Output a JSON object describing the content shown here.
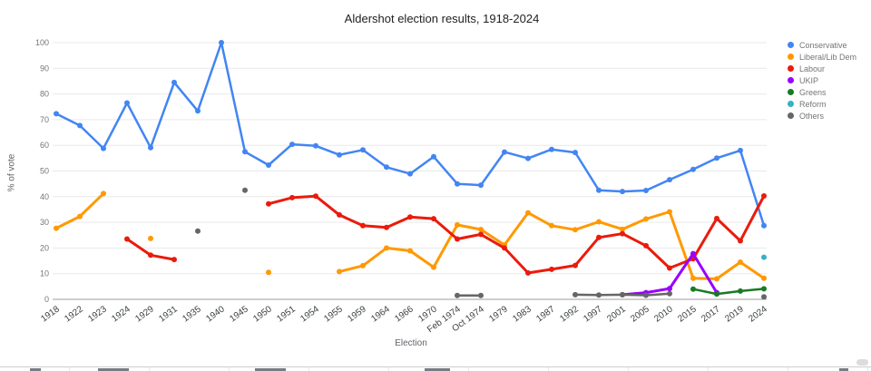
{
  "chart_data": {
    "type": "line",
    "title": "Aldershot election results, 1918-2024",
    "xlabel": "Election",
    "ylabel": "% of vote",
    "ylim": [
      0,
      100
    ],
    "y_tick_step": 10,
    "grid": true,
    "legend_position": "right",
    "categories": [
      "1918",
      "1922",
      "1923",
      "1924",
      "1929",
      "1931",
      "1935",
      "1940",
      "1945",
      "1950",
      "1951",
      "1954",
      "1955",
      "1959",
      "1964",
      "1966",
      "1970",
      "Feb 1974",
      "Oct 1974",
      "1979",
      "1983",
      "1987",
      "1992",
      "1997",
      "2001",
      "2005",
      "2010",
      "2015",
      "2017",
      "2019",
      "2024"
    ],
    "series": [
      {
        "name": "Conservative",
        "color": "#4285F4",
        "width": 2.5,
        "values": [
          72.3,
          67.7,
          58.8,
          76.5,
          59.1,
          84.5,
          73.4,
          100,
          57.5,
          52.3,
          60.4,
          59.8,
          56.3,
          58.2,
          51.5,
          48.9,
          55.6,
          45.0,
          44.5,
          57.4,
          54.9,
          58.4,
          57.2,
          42.5,
          42.0,
          42.4,
          46.6,
          50.6,
          55.0,
          58.0,
          28.7
        ]
      },
      {
        "name": "Liberal/Lib Dem",
        "color": "#FF9900",
        "width": 3,
        "values": [
          27.7,
          32.3,
          41.2,
          null,
          23.7,
          null,
          null,
          null,
          null,
          10.5,
          null,
          null,
          10.8,
          13.1,
          20.0,
          18.9,
          12.5,
          29.0,
          27.2,
          21.2,
          33.7,
          28.7,
          27.1,
          30.2,
          27.3,
          31.3,
          34.1,
          8.2,
          8.0,
          14.5,
          8.2
        ]
      },
      {
        "name": "Labour",
        "color": "#EA1B0C",
        "width": 3,
        "values": [
          null,
          null,
          null,
          23.5,
          17.2,
          15.5,
          null,
          null,
          null,
          37.2,
          39.6,
          40.2,
          32.9,
          28.7,
          28.0,
          32.1,
          31.4,
          23.5,
          25.3,
          20.0,
          10.3,
          11.7,
          13.2,
          24.1,
          25.6,
          20.9,
          12.2,
          15.8,
          31.5,
          22.8,
          40.3
        ]
      },
      {
        "name": "UKIP",
        "color": "#9900FF",
        "width": 3,
        "values": [
          null,
          null,
          null,
          null,
          null,
          null,
          null,
          null,
          null,
          null,
          null,
          null,
          null,
          null,
          null,
          null,
          null,
          null,
          null,
          null,
          null,
          null,
          null,
          null,
          1.8,
          2.6,
          4.2,
          17.8,
          2.6,
          null,
          null
        ]
      },
      {
        "name": "Greens",
        "color": "#1A7A23",
        "width": 2.5,
        "values": [
          null,
          null,
          null,
          null,
          null,
          null,
          null,
          null,
          null,
          null,
          null,
          null,
          null,
          null,
          null,
          null,
          null,
          null,
          null,
          null,
          null,
          null,
          null,
          null,
          null,
          null,
          null,
          4.0,
          2.1,
          3.2,
          4.1
        ]
      },
      {
        "name": "Reform",
        "color": "#35B2C4",
        "width": 2.5,
        "values": [
          null,
          null,
          null,
          null,
          null,
          null,
          null,
          null,
          null,
          null,
          null,
          null,
          null,
          null,
          null,
          null,
          null,
          null,
          null,
          null,
          null,
          null,
          null,
          null,
          null,
          null,
          null,
          null,
          null,
          null,
          16.4
        ]
      },
      {
        "name": "Others",
        "color": "#666666",
        "width": 2.5,
        "values": [
          null,
          null,
          null,
          null,
          null,
          null,
          26.6,
          null,
          42.5,
          null,
          null,
          null,
          null,
          null,
          null,
          null,
          null,
          1.5,
          1.5,
          null,
          null,
          null,
          1.8,
          1.7,
          1.8,
          1.6,
          2.2,
          null,
          null,
          null,
          1.0
        ]
      }
    ]
  },
  "colors": {
    "background": "#ffffff",
    "gridline": "#e9e9e9",
    "axis_line": "#9e9e9e",
    "title_text": "#202124",
    "axis_title_text": "#5f6368",
    "y_tick_text": "#757575",
    "x_tick_text": "#3c4043"
  }
}
